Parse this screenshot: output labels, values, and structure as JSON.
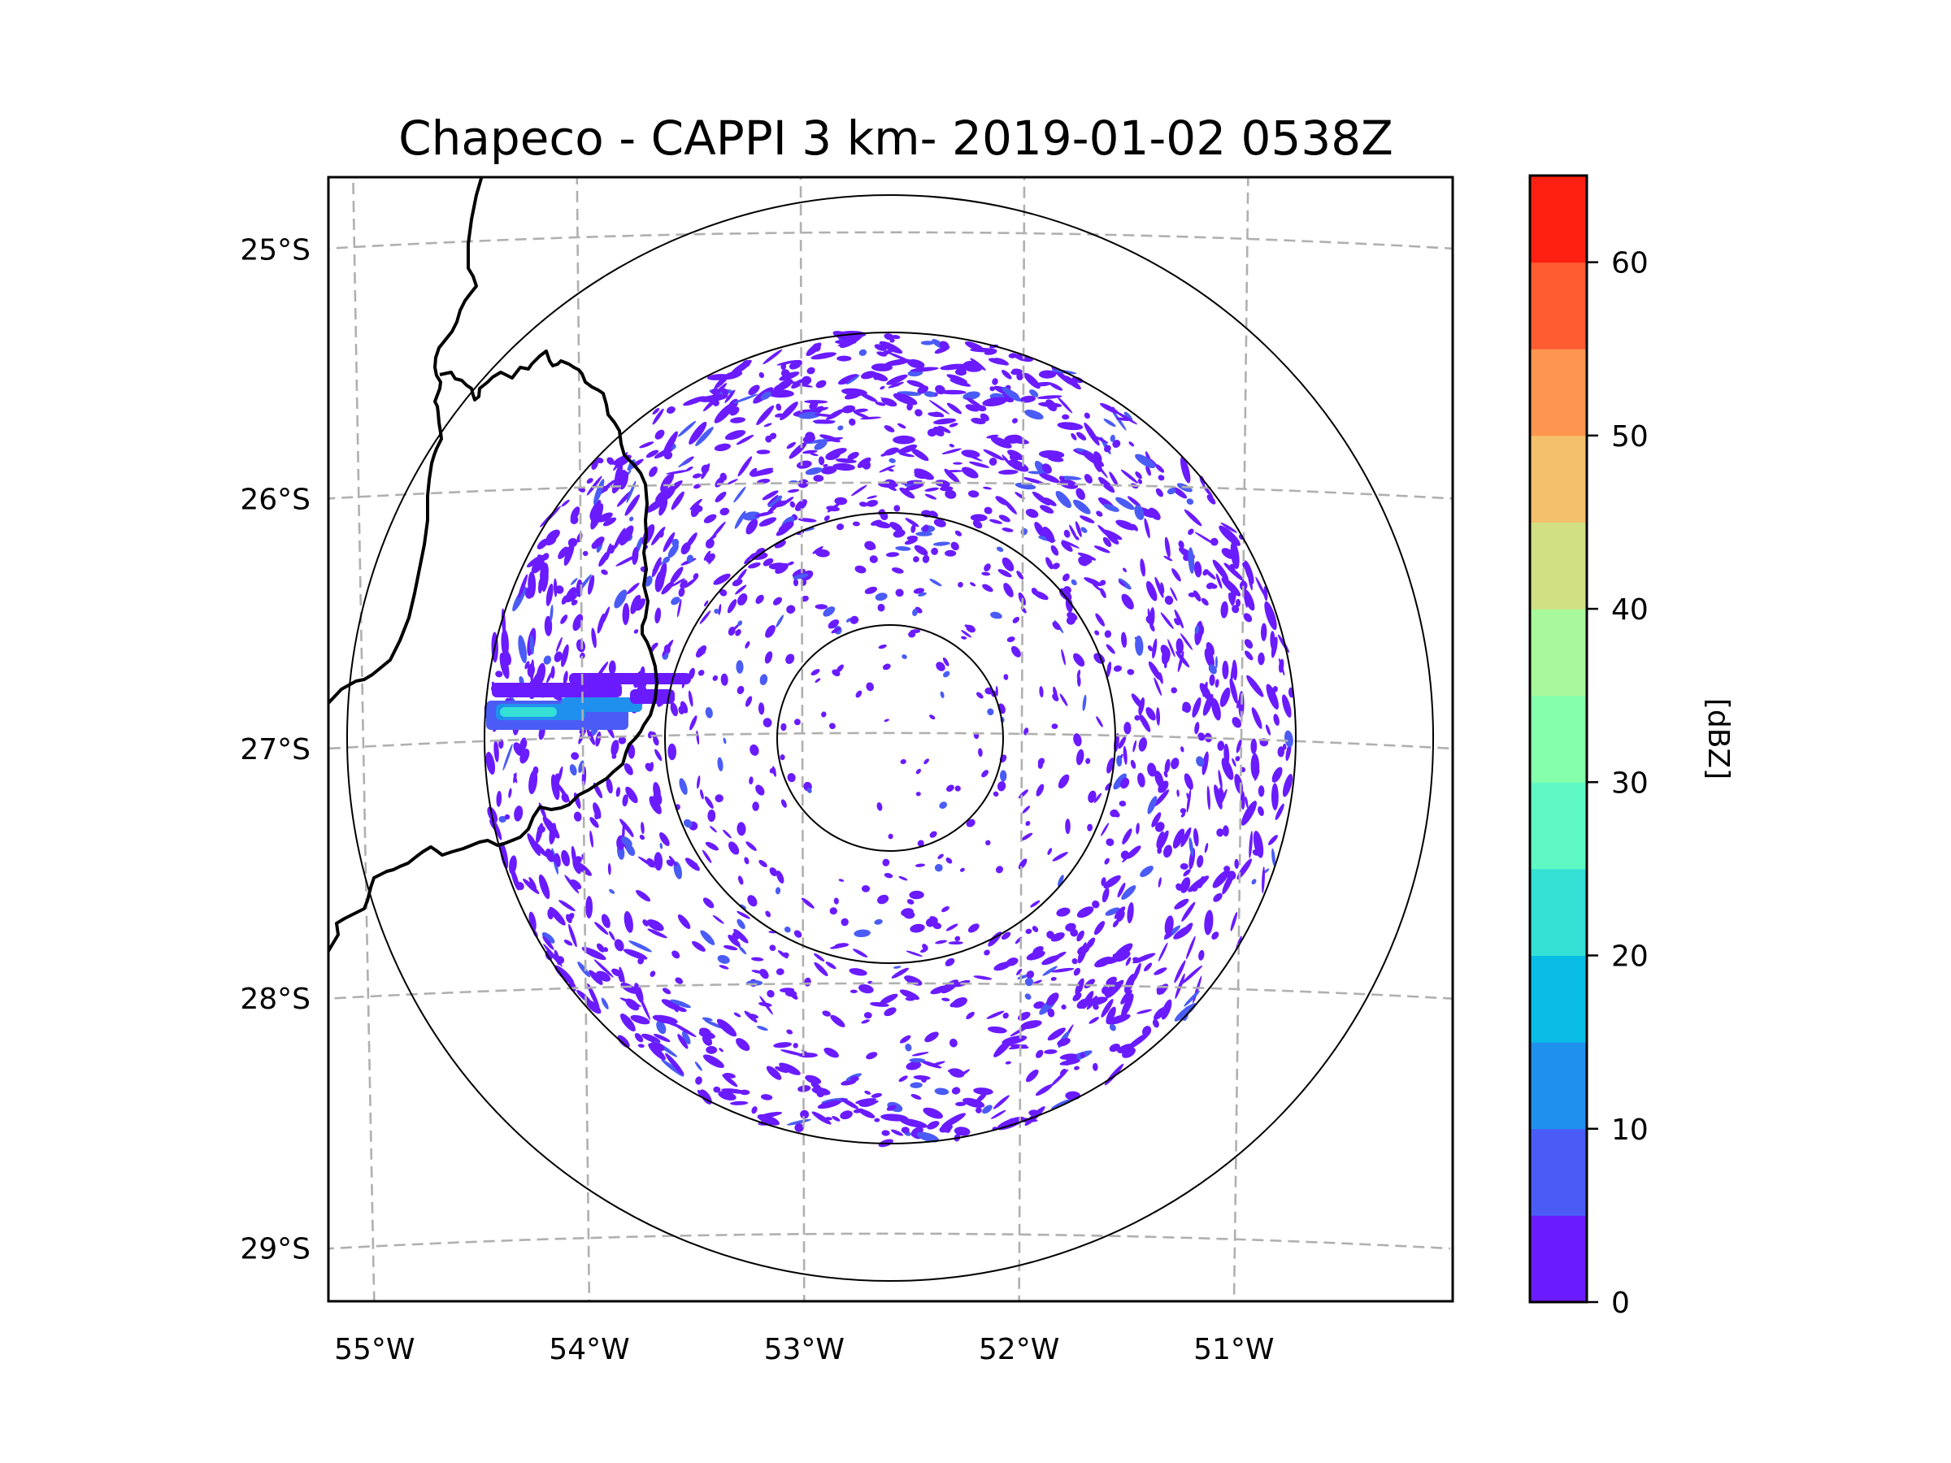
{
  "chart_data": {
    "type": "heatmap",
    "subtype": "radar-ppi-map",
    "title": "Chapeco - CAPPI 3 km- 2019-01-02 0538Z",
    "station": "Chapeco",
    "product": "CAPPI 3 km",
    "date": "2019-01-02",
    "time": "0538Z",
    "xlabel": "",
    "ylabel": "",
    "lon_ticks": [
      -55,
      -54,
      -53,
      -52,
      -51
    ],
    "lon_tick_labels": [
      "55°W",
      "54°W",
      "53°W",
      "52°W",
      "51°W"
    ],
    "lat_ticks": [
      -25,
      -26,
      -27,
      -28,
      -29
    ],
    "lat_tick_labels": [
      "25°S",
      "26°S",
      "27°S",
      "28°S",
      "29°S"
    ],
    "lon_range": [
      -55.2,
      -50.1
    ],
    "lat_range": [
      -29.3,
      -24.8
    ],
    "grid": true,
    "radar_center": {
      "lon": -52.6,
      "lat": -27.02
    },
    "range_rings_count": 4,
    "colorbar": {
      "label": "[dBZ]",
      "min": 0,
      "max": 65,
      "step": 5,
      "ticks": [
        0,
        10,
        20,
        30,
        40,
        50,
        60
      ],
      "tick_labels": [
        "0",
        "10",
        "20",
        "30",
        "40",
        "50",
        "60"
      ],
      "colors": [
        "#6a1bff",
        "#4a5cf5",
        "#2090ef",
        "#0abde6",
        "#35e1d5",
        "#5ef9c4",
        "#85ffac",
        "#a8f99b",
        "#d1e083",
        "#f4c06c",
        "#ff9650",
        "#ff5c31",
        "#ff2012"
      ],
      "placement": "right"
    },
    "echoes": {
      "dominant_range_dbz": [
        0,
        10
      ],
      "strong_cell": {
        "lon_approx": -54.1,
        "lat_approx": -26.9,
        "max_dbz_approx": 25,
        "description": "elongated east-west band west of border"
      },
      "description": "scattered weak echoes (0-10 dBZ) across radar coverage, denser in the 100-200 km annulus and northern sector"
    }
  }
}
